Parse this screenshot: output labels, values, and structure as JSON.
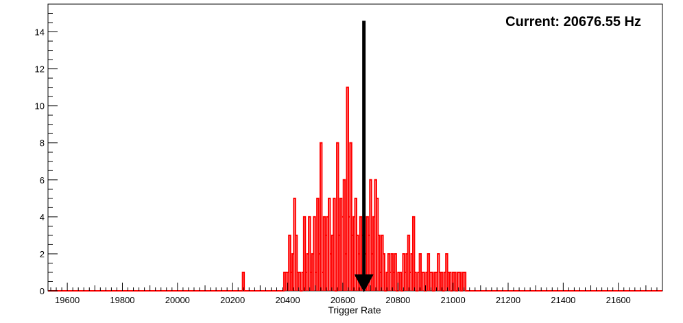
{
  "chart_data": {
    "type": "histogram",
    "title": "",
    "xlabel": "Trigger Rate",
    "ylabel": "",
    "xlim": [
      19530,
      21760
    ],
    "ylim": [
      0,
      15.5
    ],
    "x_ticks": [
      19600,
      19800,
      20000,
      20200,
      20400,
      20600,
      20800,
      21000,
      21200,
      21400,
      21600
    ],
    "y_ticks": [
      0,
      2,
      4,
      6,
      8,
      10,
      12,
      14
    ],
    "grid": false,
    "legend": "none",
    "series": [
      {
        "color": "#ff0000",
        "bins": [
          [
            20236,
            20242,
            1
          ],
          [
            20386,
            20392,
            1
          ],
          [
            20392,
            20398,
            1
          ],
          [
            20398,
            20404,
            1
          ],
          [
            20404,
            20410,
            3
          ],
          [
            20410,
            20416,
            1
          ],
          [
            20416,
            20422,
            2
          ],
          [
            20422,
            20428,
            5
          ],
          [
            20428,
            20434,
            3
          ],
          [
            20434,
            20440,
            1
          ],
          [
            20440,
            20446,
            1
          ],
          [
            20446,
            20452,
            0
          ],
          [
            20452,
            20458,
            1
          ],
          [
            20458,
            20464,
            4
          ],
          [
            20464,
            20470,
            1
          ],
          [
            20470,
            20476,
            2
          ],
          [
            20476,
            20482,
            4
          ],
          [
            20482,
            20488,
            1
          ],
          [
            20488,
            20494,
            2
          ],
          [
            20494,
            20500,
            4
          ],
          [
            20500,
            20506,
            1
          ],
          [
            20506,
            20512,
            5
          ],
          [
            20512,
            20518,
            2
          ],
          [
            20518,
            20524,
            8
          ],
          [
            20524,
            20530,
            1
          ],
          [
            20530,
            20536,
            4
          ],
          [
            20536,
            20542,
            3
          ],
          [
            20542,
            20548,
            4
          ],
          [
            20548,
            20554,
            5
          ],
          [
            20554,
            20560,
            2
          ],
          [
            20560,
            20566,
            3
          ],
          [
            20566,
            20572,
            5
          ],
          [
            20572,
            20578,
            0
          ],
          [
            20578,
            20584,
            8
          ],
          [
            20584,
            20590,
            3
          ],
          [
            20590,
            20596,
            5
          ],
          [
            20596,
            20602,
            4
          ],
          [
            20602,
            20608,
            6
          ],
          [
            20608,
            20614,
            2
          ],
          [
            20614,
            20620,
            11
          ],
          [
            20620,
            20626,
            4
          ],
          [
            20626,
            20632,
            8
          ],
          [
            20632,
            20638,
            3
          ],
          [
            20638,
            20644,
            4
          ],
          [
            20644,
            20650,
            5
          ],
          [
            20650,
            20656,
            3
          ],
          [
            20656,
            20662,
            2
          ],
          [
            20662,
            20668,
            4
          ],
          [
            20668,
            20674,
            3
          ],
          [
            20674,
            20680,
            5
          ],
          [
            20680,
            20686,
            2
          ],
          [
            20686,
            20692,
            4
          ],
          [
            20692,
            20698,
            3
          ],
          [
            20698,
            20704,
            6
          ],
          [
            20704,
            20710,
            2
          ],
          [
            20710,
            20716,
            4
          ],
          [
            20716,
            20722,
            6
          ],
          [
            20722,
            20728,
            5
          ],
          [
            20728,
            20734,
            3
          ],
          [
            20734,
            20740,
            1
          ],
          [
            20740,
            20746,
            3
          ],
          [
            20746,
            20752,
            2
          ],
          [
            20752,
            20758,
            0
          ],
          [
            20758,
            20764,
            1
          ],
          [
            20764,
            20770,
            2
          ],
          [
            20770,
            20776,
            1
          ],
          [
            20776,
            20782,
            2
          ],
          [
            20782,
            20788,
            1
          ],
          [
            20788,
            20794,
            2
          ],
          [
            20794,
            20800,
            0
          ],
          [
            20800,
            20806,
            1
          ],
          [
            20806,
            20812,
            1
          ],
          [
            20812,
            20818,
            0
          ],
          [
            20818,
            20824,
            2
          ],
          [
            20824,
            20830,
            1
          ],
          [
            20830,
            20836,
            2
          ],
          [
            20836,
            20842,
            3
          ],
          [
            20842,
            20848,
            1
          ],
          [
            20848,
            20854,
            2
          ],
          [
            20854,
            20860,
            4
          ],
          [
            20860,
            20866,
            1
          ],
          [
            20866,
            20872,
            0
          ],
          [
            20872,
            20878,
            1
          ],
          [
            20878,
            20884,
            2
          ],
          [
            20884,
            20890,
            1
          ],
          [
            20890,
            20896,
            1
          ],
          [
            20896,
            20902,
            0
          ],
          [
            20902,
            20908,
            1
          ],
          [
            20908,
            20914,
            2
          ],
          [
            20914,
            20920,
            1
          ],
          [
            20920,
            20926,
            1
          ],
          [
            20926,
            20932,
            0
          ],
          [
            20932,
            20938,
            1
          ],
          [
            20938,
            20944,
            1
          ],
          [
            20944,
            20950,
            2
          ],
          [
            20950,
            20956,
            1
          ],
          [
            20956,
            20962,
            1
          ],
          [
            20962,
            20968,
            0
          ],
          [
            20968,
            20974,
            1
          ],
          [
            20974,
            20980,
            2
          ],
          [
            20980,
            20986,
            1
          ],
          [
            20986,
            20992,
            1
          ],
          [
            20992,
            20998,
            0
          ],
          [
            20998,
            21004,
            1
          ],
          [
            21004,
            21010,
            1
          ],
          [
            21010,
            21016,
            0
          ],
          [
            21016,
            21022,
            1
          ],
          [
            21022,
            21028,
            1
          ],
          [
            21028,
            21034,
            0
          ],
          [
            21034,
            21040,
            1
          ],
          [
            21040,
            21046,
            1
          ]
        ]
      }
    ],
    "marker": {
      "value": 20676.55,
      "label": "Current: 20676.55 Hz",
      "ytop": 14.6,
      "color": "#000000"
    }
  }
}
